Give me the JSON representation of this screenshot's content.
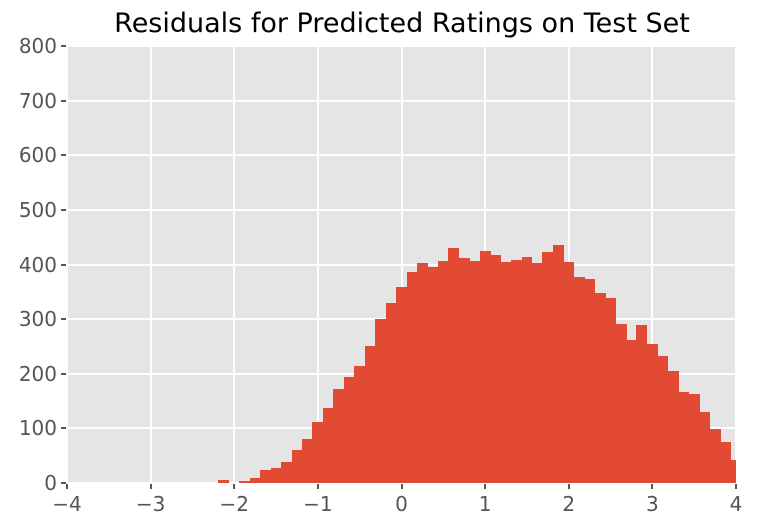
{
  "chart_data": {
    "type": "bar",
    "subtype": "histogram",
    "title": "Residuals for Predicted Ratings on Test Set",
    "xlabel": "",
    "ylabel": "",
    "xlim": [
      -4,
      4
    ],
    "ylim": [
      0,
      800
    ],
    "x_tick_labels": [
      "−4",
      "−3",
      "−2",
      "−1",
      "0",
      "1",
      "2",
      "3",
      "4"
    ],
    "x_tick_values": [
      -4,
      -3,
      -2,
      -1,
      0,
      1,
      2,
      3,
      4
    ],
    "y_tick_labels": [
      "0",
      "100",
      "200",
      "300",
      "400",
      "500",
      "600",
      "700",
      "800"
    ],
    "y_tick_values": [
      0,
      100,
      200,
      300,
      400,
      500,
      600,
      700,
      800
    ],
    "grid": true,
    "legend": false,
    "bin_start": -2.19,
    "bin_width": 0.125,
    "counts": [
      5,
      0,
      3,
      9,
      24,
      27,
      38,
      61,
      80,
      111,
      137,
      173,
      194,
      214,
      250,
      300,
      330,
      359,
      387,
      402,
      396,
      406,
      431,
      412,
      406,
      425,
      417,
      405,
      408,
      413,
      402,
      423,
      436,
      404,
      377,
      373,
      348,
      338,
      292,
      262,
      290,
      254,
      232,
      205,
      166,
      163,
      130,
      98,
      75,
      42
    ],
    "colors": {
      "bar": "#E24A33",
      "plot_background": "#E5E5E5",
      "figure_background": "#FFFFFF",
      "gridline": "#FFFFFF",
      "tick_label": "#555555",
      "tick_mark": "#555555",
      "title": "#000000"
    }
  }
}
